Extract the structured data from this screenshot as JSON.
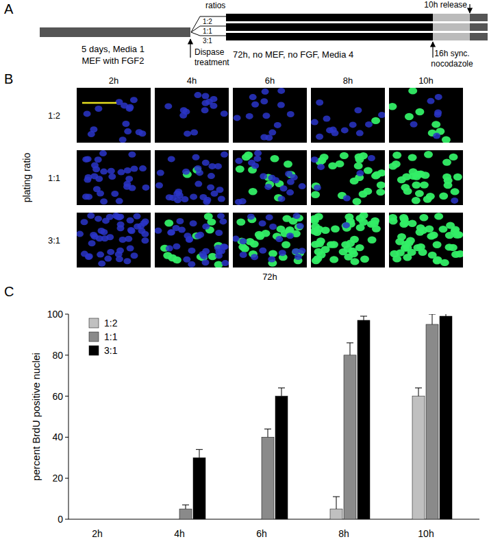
{
  "panel_a": {
    "label": "A",
    "stage1": [
      "5 days, Media 1",
      "MEF with FGF2"
    ],
    "dispase": [
      "Dispase",
      "treatment"
    ],
    "ratios_title": "ratios",
    "ratios": [
      "1:2",
      "1:1",
      "3:1"
    ],
    "culture": "72h, no MEF, no FGF, Media 4",
    "sync": [
      "16h sync.",
      "nocodazole"
    ],
    "release": "10h release"
  },
  "panel_b": {
    "label": "B",
    "columns": [
      "2h",
      "4h",
      "6h",
      "8h",
      "10h"
    ],
    "rows": [
      "1:2",
      "1:1",
      "3:1"
    ],
    "row_axis_label": "plating ratio",
    "footer": "72h"
  },
  "panel_c": {
    "label": "C"
  },
  "chart_data": {
    "type": "bar",
    "y_label": "percent BrdU positive nuclei",
    "categories": [
      "2h",
      "4h",
      "6h",
      "8h",
      "10h"
    ],
    "series": [
      {
        "name": "1:2",
        "color": "#c0c0c0",
        "values": [
          0,
          0,
          0,
          5,
          60
        ],
        "errors": [
          0,
          0,
          0,
          6,
          4
        ]
      },
      {
        "name": "1:1",
        "color": "#8a8a8a",
        "values": [
          0,
          5,
          40,
          80,
          95
        ],
        "errors": [
          0,
          2,
          4,
          6,
          5
        ]
      },
      {
        "name": "3:1",
        "color": "#000000",
        "values": [
          0,
          30,
          60,
          97,
          99
        ],
        "errors": [
          0,
          4,
          4,
          2,
          2
        ]
      }
    ],
    "ylim": [
      0,
      100
    ],
    "yticks": [
      0,
      20,
      40,
      60,
      80,
      100
    ],
    "grid": false,
    "legend": "upper left"
  }
}
